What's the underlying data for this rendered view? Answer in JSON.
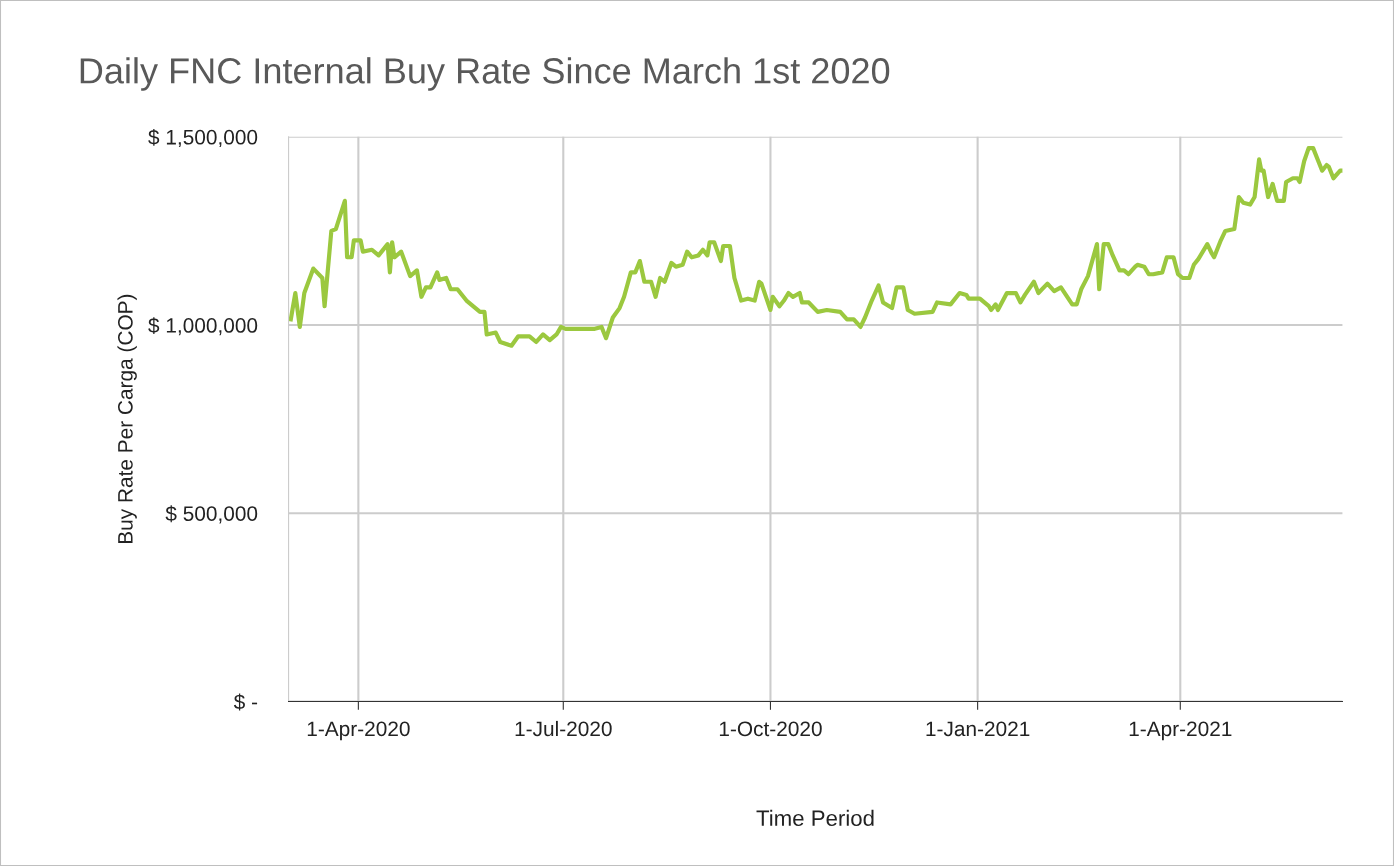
{
  "chart_data": {
    "type": "line",
    "title": "Daily FNC Internal Buy Rate Since March 1st 2020",
    "xlabel": "Time Period",
    "ylabel": "Buy Rate Per Carga (COP)",
    "x": [
      "2020-03-02",
      "2020-03-04",
      "2020-03-06",
      "2020-03-08",
      "2020-03-12",
      "2020-03-16",
      "2020-03-17",
      "2020-03-20",
      "2020-03-22",
      "2020-03-26",
      "2020-03-27",
      "2020-03-29",
      "2020-03-30",
      "2020-04-02",
      "2020-04-03",
      "2020-04-07",
      "2020-04-10",
      "2020-04-14",
      "2020-04-15",
      "2020-04-16",
      "2020-04-17",
      "2020-04-20",
      "2020-04-24",
      "2020-04-27",
      "2020-04-29",
      "2020-05-01",
      "2020-05-03",
      "2020-05-06",
      "2020-05-07",
      "2020-05-10",
      "2020-05-12",
      "2020-05-15",
      "2020-05-19",
      "2020-05-25",
      "2020-05-27",
      "2020-05-28",
      "2020-06-01",
      "2020-06-03",
      "2020-06-08",
      "2020-06-11",
      "2020-06-16",
      "2020-06-19",
      "2020-06-22",
      "2020-06-25",
      "2020-06-28",
      "2020-06-30",
      "2020-07-02",
      "2020-07-15",
      "2020-07-18",
      "2020-07-20",
      "2020-07-23",
      "2020-07-26",
      "2020-07-28",
      "2020-07-31",
      "2020-08-02",
      "2020-08-04",
      "2020-08-06",
      "2020-08-09",
      "2020-08-11",
      "2020-08-13",
      "2020-08-15",
      "2020-08-18",
      "2020-08-20",
      "2020-08-23",
      "2020-08-25",
      "2020-08-27",
      "2020-08-30",
      "2020-09-01",
      "2020-09-03",
      "2020-09-04",
      "2020-09-06",
      "2020-09-09",
      "2020-09-10",
      "2020-09-13",
      "2020-09-15",
      "2020-09-18",
      "2020-09-21",
      "2020-09-24",
      "2020-09-26",
      "2020-09-27",
      "2020-09-29",
      "2020-10-01",
      "2020-10-02",
      "2020-10-05",
      "2020-10-07",
      "2020-10-09",
      "2020-10-11",
      "2020-10-14",
      "2020-10-15",
      "2020-10-18",
      "2020-10-22",
      "2020-10-26",
      "2020-11-01",
      "2020-11-04",
      "2020-11-07",
      "2020-11-10",
      "2020-11-12",
      "2020-11-15",
      "2020-11-18",
      "2020-11-20",
      "2020-11-24",
      "2020-11-26",
      "2020-11-29",
      "2020-12-01",
      "2020-12-04",
      "2020-12-12",
      "2020-12-14",
      "2020-12-20",
      "2020-12-24",
      "2020-12-27",
      "2020-12-28",
      "2021-01-02",
      "2021-01-06",
      "2021-01-07",
      "2021-01-09",
      "2021-01-10",
      "2021-01-14",
      "2021-01-18",
      "2021-01-20",
      "2021-01-22",
      "2021-01-26",
      "2021-01-28",
      "2021-02-01",
      "2021-02-04",
      "2021-02-07",
      "2021-02-12",
      "2021-02-14",
      "2021-02-16",
      "2021-02-19",
      "2021-02-23",
      "2021-02-24",
      "2021-02-26",
      "2021-02-28",
      "2021-03-02",
      "2021-03-05",
      "2021-03-07",
      "2021-03-09",
      "2021-03-12",
      "2021-03-13",
      "2021-03-16",
      "2021-03-18",
      "2021-03-20",
      "2021-03-24",
      "2021-03-26",
      "2021-03-29",
      "2021-03-31",
      "2021-04-02",
      "2021-04-05",
      "2021-04-07",
      "2021-04-09",
      "2021-04-13",
      "2021-04-15",
      "2021-04-16",
      "2021-04-19",
      "2021-04-21",
      "2021-04-25",
      "2021-04-27",
      "2021-04-29",
      "2021-05-02",
      "2021-05-04",
      "2021-05-06",
      "2021-05-07",
      "2021-05-08",
      "2021-05-10",
      "2021-05-12",
      "2021-05-14",
      "2021-05-17",
      "2021-05-18",
      "2021-05-21",
      "2021-05-23",
      "2021-05-24",
      "2021-05-26",
      "2021-05-28",
      "2021-05-30",
      "2021-06-01",
      "2021-06-03",
      "2021-06-05",
      "2021-06-06",
      "2021-06-08",
      "2021-06-11",
      "2021-06-12"
    ],
    "series": [
      {
        "color": "#9bc83f",
        "values": [
          1015000,
          1085000,
          995000,
          1085000,
          1150000,
          1125000,
          1050000,
          1250000,
          1255000,
          1330000,
          1180000,
          1180000,
          1225000,
          1225000,
          1195000,
          1200000,
          1185000,
          1215000,
          1140000,
          1220000,
          1180000,
          1195000,
          1130000,
          1145000,
          1075000,
          1100000,
          1100000,
          1140000,
          1120000,
          1125000,
          1095000,
          1095000,
          1065000,
          1035000,
          1035000,
          975000,
          980000,
          955000,
          945000,
          970000,
          970000,
          955000,
          975000,
          960000,
          975000,
          995000,
          990000,
          990000,
          995000,
          965000,
          1020000,
          1045000,
          1075000,
          1140000,
          1140000,
          1170000,
          1115000,
          1115000,
          1075000,
          1125000,
          1115000,
          1165000,
          1155000,
          1160000,
          1195000,
          1180000,
          1185000,
          1200000,
          1185000,
          1220000,
          1220000,
          1170000,
          1210000,
          1210000,
          1125000,
          1065000,
          1070000,
          1065000,
          1115000,
          1110000,
          1075000,
          1040000,
          1075000,
          1050000,
          1065000,
          1085000,
          1075000,
          1085000,
          1060000,
          1060000,
          1035000,
          1040000,
          1035000,
          1015000,
          1015000,
          995000,
          1020000,
          1065000,
          1105000,
          1060000,
          1045000,
          1100000,
          1100000,
          1040000,
          1030000,
          1035000,
          1060000,
          1055000,
          1085000,
          1080000,
          1070000,
          1070000,
          1050000,
          1040000,
          1055000,
          1040000,
          1085000,
          1085000,
          1060000,
          1080000,
          1115000,
          1085000,
          1110000,
          1090000,
          1100000,
          1055000,
          1055000,
          1095000,
          1130000,
          1215000,
          1095000,
          1215000,
          1215000,
          1185000,
          1145000,
          1145000,
          1135000,
          1155000,
          1160000,
          1155000,
          1135000,
          1135000,
          1140000,
          1180000,
          1180000,
          1135000,
          1125000,
          1125000,
          1160000,
          1175000,
          1215000,
          1190000,
          1180000,
          1225000,
          1250000,
          1255000,
          1340000,
          1325000,
          1320000,
          1340000,
          1440000,
          1410000,
          1410000,
          1340000,
          1375000,
          1330000,
          1330000,
          1380000,
          1390000,
          1390000,
          1380000,
          1435000,
          1470000,
          1470000,
          1440000,
          1410000,
          1425000,
          1420000,
          1390000,
          1410000,
          1410000
        ]
      }
    ],
    "xlim": [
      "2020-03-01",
      "2021-06-12"
    ],
    "xticks": [
      {
        "value": "2020-04-01",
        "label": "1-Apr-2020"
      },
      {
        "value": "2020-07-01",
        "label": "1-Jul-2020"
      },
      {
        "value": "2020-10-01",
        "label": "1-Oct-2020"
      },
      {
        "value": "2021-01-01",
        "label": "1-Jan-2021"
      },
      {
        "value": "2021-04-01",
        "label": "1-Apr-2021"
      }
    ],
    "ylim": [
      0,
      1500000
    ],
    "yticks": [
      {
        "value": 0,
        "label": "$ -"
      },
      {
        "value": 500000,
        "label": "$ 500,000"
      },
      {
        "value": 1000000,
        "label": "$ 1,000,000"
      },
      {
        "value": 1500000,
        "label": "$ 1,500,000"
      }
    ],
    "grid": true,
    "marker": "none",
    "line_style": "solid"
  }
}
